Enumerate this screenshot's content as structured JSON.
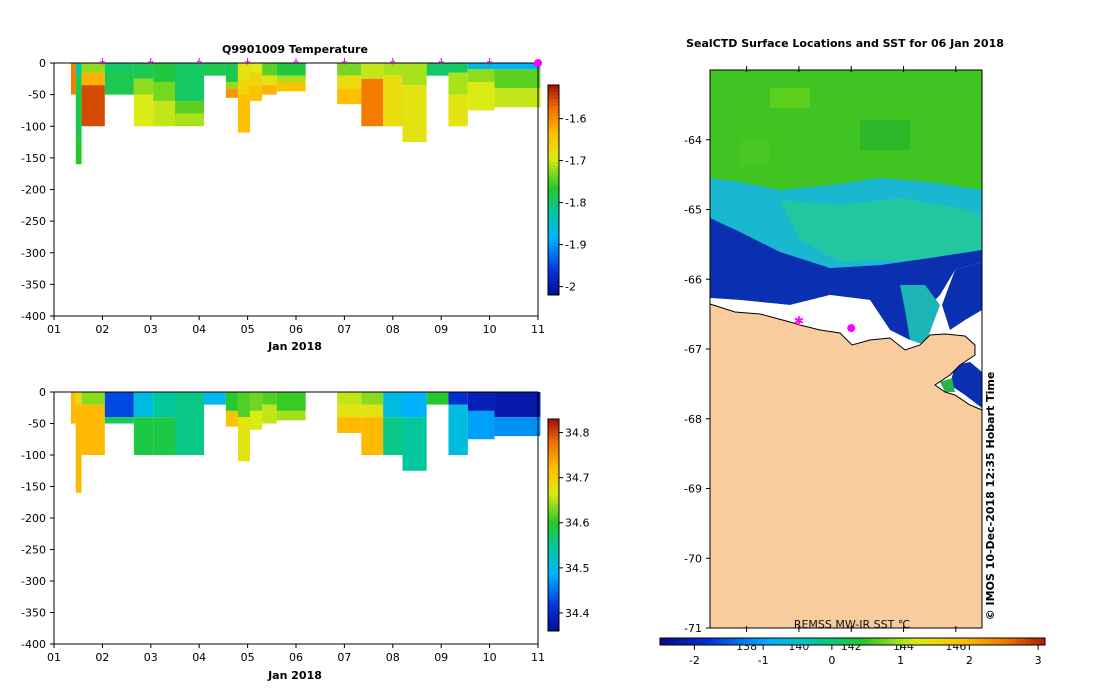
{
  "chart_data": [
    {
      "type": "heatmap",
      "title": "Q9901009  Temperature",
      "xlabel": "Jan 2018",
      "ylabel": "",
      "x_ticks": [
        "01",
        "02",
        "03",
        "04",
        "05",
        "06",
        "07",
        "08",
        "09",
        "10",
        "11"
      ],
      "y_ticks": [
        0,
        -50,
        -100,
        -150,
        -200,
        -250,
        -300,
        -350,
        -400
      ],
      "xlim": [
        1,
        11
      ],
      "ylim": [
        -400,
        0
      ],
      "colorbar": {
        "ticks": [
          -1.6,
          -1.7,
          -1.8,
          -1.9,
          -2
        ],
        "tick_labels": [
          "-1.6",
          "-1.7",
          "-1.8",
          "-1.9",
          "-2"
        ],
        "range": [
          -2.02,
          -1.52
        ]
      },
      "profile_markers": [
        2,
        3,
        4,
        5,
        6,
        7,
        8,
        9,
        10,
        11
      ],
      "profiles": [
        {
          "x0": 1.35,
          "x1": 1.45,
          "cells": [
            [
              0,
              -50,
              -1.58
            ]
          ]
        },
        {
          "x0": 1.45,
          "x1": 1.57,
          "cells": [
            [
              0,
              -20,
              -1.82
            ],
            [
              -20,
              -120,
              -1.78
            ],
            [
              -120,
              -160,
              -1.76
            ]
          ]
        },
        {
          "x0": 1.57,
          "x1": 2.05,
          "cells": [
            [
              0,
              -15,
              -1.72
            ],
            [
              -15,
              -35,
              -1.62
            ],
            [
              -35,
              -100,
              -1.55
            ]
          ]
        },
        {
          "x0": 2.05,
          "x1": 2.65,
          "cells": [
            [
              0,
              -15,
              -1.79
            ],
            [
              -15,
              -50,
              -1.78
            ]
          ]
        },
        {
          "x0": 2.65,
          "x1": 3.05,
          "cells": [
            [
              0,
              -25,
              -1.78
            ],
            [
              -25,
              -50,
              -1.72
            ],
            [
              -50,
              -100,
              -1.69
            ]
          ]
        },
        {
          "x0": 3.05,
          "x1": 3.5,
          "cells": [
            [
              0,
              -30,
              -1.77
            ],
            [
              -30,
              -60,
              -1.73
            ],
            [
              -60,
              -100,
              -1.7
            ]
          ]
        },
        {
          "x0": 3.5,
          "x1": 4.1,
          "cells": [
            [
              0,
              -60,
              -1.79
            ],
            [
              -60,
              -80,
              -1.74
            ],
            [
              -80,
              -100,
              -1.71
            ]
          ]
        },
        {
          "x0": 4.1,
          "x1": 4.55,
          "cells": [
            [
              0,
              -20,
              -1.78
            ]
          ]
        },
        {
          "x0": 4.55,
          "x1": 4.8,
          "cells": [
            [
              0,
              -30,
              -1.78
            ],
            [
              -30,
              -40,
              -1.72
            ],
            [
              -40,
              -55,
              -1.6
            ]
          ]
        },
        {
          "x0": 4.8,
          "x1": 5.05,
          "cells": [
            [
              0,
              -25,
              -1.68
            ],
            [
              -25,
              -50,
              -1.66
            ],
            [
              -50,
              -110,
              -1.63
            ]
          ]
        },
        {
          "x0": 5.05,
          "x1": 5.3,
          "cells": [
            [
              0,
              -15,
              -1.69
            ],
            [
              -15,
              -35,
              -1.66
            ],
            [
              -35,
              -60,
              -1.64
            ]
          ]
        },
        {
          "x0": 5.3,
          "x1": 5.6,
          "cells": [
            [
              0,
              -20,
              -1.74
            ],
            [
              -20,
              -35,
              -1.68
            ],
            [
              -35,
              -50,
              -1.62
            ]
          ]
        },
        {
          "x0": 5.6,
          "x1": 6.2,
          "cells": [
            [
              0,
              -20,
              -1.77
            ],
            [
              -20,
              -30,
              -1.71
            ],
            [
              -30,
              -45,
              -1.64
            ]
          ]
        },
        {
          "x0": 6.85,
          "x1": 7.35,
          "cells": [
            [
              0,
              -20,
              -1.73
            ],
            [
              -20,
              -40,
              -1.67
            ],
            [
              -40,
              -65,
              -1.63
            ]
          ]
        },
        {
          "x0": 7.35,
          "x1": 7.8,
          "cells": [
            [
              0,
              -25,
              -1.7
            ],
            [
              -25,
              -100,
              -1.58
            ]
          ]
        },
        {
          "x0": 7.8,
          "x1": 8.2,
          "cells": [
            [
              0,
              -20,
              -1.71
            ],
            [
              -20,
              -100,
              -1.67
            ]
          ]
        },
        {
          "x0": 8.2,
          "x1": 8.7,
          "cells": [
            [
              0,
              -35,
              -1.71
            ],
            [
              -35,
              -125,
              -1.68
            ]
          ]
        },
        {
          "x0": 8.7,
          "x1": 9.15,
          "cells": [
            [
              0,
              -20,
              -1.79
            ]
          ]
        },
        {
          "x0": 9.15,
          "x1": 9.55,
          "cells": [
            [
              0,
              -15,
              -1.79
            ],
            [
              -15,
              -50,
              -1.71
            ],
            [
              -50,
              -100,
              -1.68
            ]
          ]
        },
        {
          "x0": 9.55,
          "x1": 10.1,
          "cells": [
            [
              0,
              -10,
              -1.86
            ],
            [
              -10,
              -30,
              -1.72
            ],
            [
              -30,
              -75,
              -1.69
            ]
          ]
        },
        {
          "x0": 10.1,
          "x1": 11.05,
          "cells": [
            [
              0,
              -10,
              -1.88
            ],
            [
              -10,
              -40,
              -1.74
            ],
            [
              -40,
              -70,
              -1.7
            ]
          ]
        }
      ]
    },
    {
      "type": "heatmap",
      "title": "",
      "xlabel": "Jan 2018",
      "ylabel": "",
      "x_ticks": [
        "01",
        "02",
        "03",
        "04",
        "05",
        "06",
        "07",
        "08",
        "09",
        "10",
        "11"
      ],
      "y_ticks": [
        0,
        -50,
        -100,
        -150,
        -200,
        -250,
        -300,
        -350,
        -400
      ],
      "xlim": [
        1,
        11
      ],
      "ylim": [
        -400,
        0
      ],
      "colorbar": {
        "ticks": [
          34.8,
          34.7,
          34.6,
          34.5,
          34.4
        ],
        "tick_labels": [
          "34.8",
          "34.7",
          "34.6",
          "34.5",
          "34.4"
        ],
        "range": [
          34.36,
          34.83
        ]
      },
      "profiles": [
        {
          "x0": 1.35,
          "x1": 1.45,
          "cells": [
            [
              0,
              -50,
              34.73
            ]
          ]
        },
        {
          "x0": 1.45,
          "x1": 1.57,
          "cells": [
            [
              0,
              -20,
              34.69
            ],
            [
              -20,
              -160,
              34.73
            ]
          ]
        },
        {
          "x0": 1.57,
          "x1": 2.05,
          "cells": [
            [
              0,
              -20,
              34.64
            ],
            [
              -20,
              -100,
              34.73
            ]
          ]
        },
        {
          "x0": 2.05,
          "x1": 2.65,
          "cells": [
            [
              0,
              -40,
              34.43
            ],
            [
              -40,
              -50,
              34.58
            ]
          ]
        },
        {
          "x0": 2.65,
          "x1": 3.05,
          "cells": [
            [
              0,
              -40,
              34.51
            ],
            [
              -40,
              -100,
              34.59
            ]
          ]
        },
        {
          "x0": 3.05,
          "x1": 3.5,
          "cells": [
            [
              0,
              -40,
              34.55
            ],
            [
              -40,
              -100,
              34.59
            ]
          ]
        },
        {
          "x0": 3.5,
          "x1": 4.1,
          "cells": [
            [
              0,
              -100,
              34.56
            ]
          ]
        },
        {
          "x0": 4.1,
          "x1": 4.55,
          "cells": [
            [
              0,
              -20,
              34.5
            ]
          ]
        },
        {
          "x0": 4.55,
          "x1": 4.8,
          "cells": [
            [
              0,
              -30,
              34.6
            ],
            [
              -30,
              -55,
              34.72
            ]
          ]
        },
        {
          "x0": 4.8,
          "x1": 5.05,
          "cells": [
            [
              0,
              -40,
              34.62
            ],
            [
              -40,
              -110,
              34.68
            ]
          ]
        },
        {
          "x0": 5.05,
          "x1": 5.3,
          "cells": [
            [
              0,
              -30,
              34.63
            ],
            [
              -30,
              -60,
              34.67
            ]
          ]
        },
        {
          "x0": 5.3,
          "x1": 5.6,
          "cells": [
            [
              0,
              -20,
              34.62
            ],
            [
              -20,
              -50,
              34.66
            ]
          ]
        },
        {
          "x0": 5.6,
          "x1": 6.2,
          "cells": [
            [
              0,
              -30,
              34.61
            ],
            [
              -30,
              -45,
              34.65
            ]
          ]
        },
        {
          "x0": 6.85,
          "x1": 7.35,
          "cells": [
            [
              0,
              -20,
              34.66
            ],
            [
              -20,
              -40,
              34.68
            ],
            [
              -40,
              -65,
              34.73
            ]
          ]
        },
        {
          "x0": 7.35,
          "x1": 7.8,
          "cells": [
            [
              0,
              -20,
              34.64
            ],
            [
              -20,
              -40,
              34.68
            ],
            [
              -40,
              -100,
              34.73
            ]
          ]
        },
        {
          "x0": 7.8,
          "x1": 8.2,
          "cells": [
            [
              0,
              -40,
              34.51
            ],
            [
              -40,
              -100,
              34.56
            ]
          ]
        },
        {
          "x0": 8.2,
          "x1": 8.7,
          "cells": [
            [
              0,
              -40,
              34.49
            ],
            [
              -40,
              -125,
              34.55
            ]
          ]
        },
        {
          "x0": 8.7,
          "x1": 9.15,
          "cells": [
            [
              0,
              -20,
              34.6
            ]
          ]
        },
        {
          "x0": 9.15,
          "x1": 9.55,
          "cells": [
            [
              0,
              -20,
              34.41
            ],
            [
              -20,
              -100,
              34.51
            ]
          ]
        },
        {
          "x0": 9.55,
          "x1": 10.1,
          "cells": [
            [
              0,
              -30,
              34.39
            ],
            [
              -30,
              -75,
              34.48
            ]
          ]
        },
        {
          "x0": 10.1,
          "x1": 11.05,
          "cells": [
            [
              0,
              -40,
              34.38
            ],
            [
              -40,
              -70,
              34.47
            ]
          ]
        }
      ]
    },
    {
      "type": "heatmap",
      "title": "SealCTD Surface Locations and SST for 06 Jan 2018",
      "y_ticks": [
        -64,
        -65,
        -66,
        -67,
        -68,
        -69,
        -70,
        -71
      ],
      "y_tick_labels": [
        "-64",
        "-65",
        "-66",
        "-67",
        "-68",
        "-69",
        "-70",
        "-71"
      ],
      "x_ticks": [
        138,
        140,
        142,
        144,
        146
      ],
      "x_tick_labels": [
        "138",
        "140",
        "142",
        "144",
        "146"
      ],
      "xlim": [
        136.6,
        147.0
      ],
      "ylim": [
        -71.0,
        -63.0
      ],
      "colorbar": {
        "ticks": [
          -2,
          -1,
          0,
          1,
          2,
          3
        ],
        "tick_labels": [
          "-2",
          "-1",
          "0",
          "1",
          "2",
          "3"
        ],
        "range": [
          -2.5,
          3.1
        ]
      },
      "legend": "REMSS MW-IR SST ℃",
      "surface_locations": [
        [
          140.0,
          -66.6
        ],
        [
          142.0,
          -66.7
        ]
      ],
      "credit": "© IMOS 10-Dec-2018 12:35 Hobart Time"
    }
  ]
}
